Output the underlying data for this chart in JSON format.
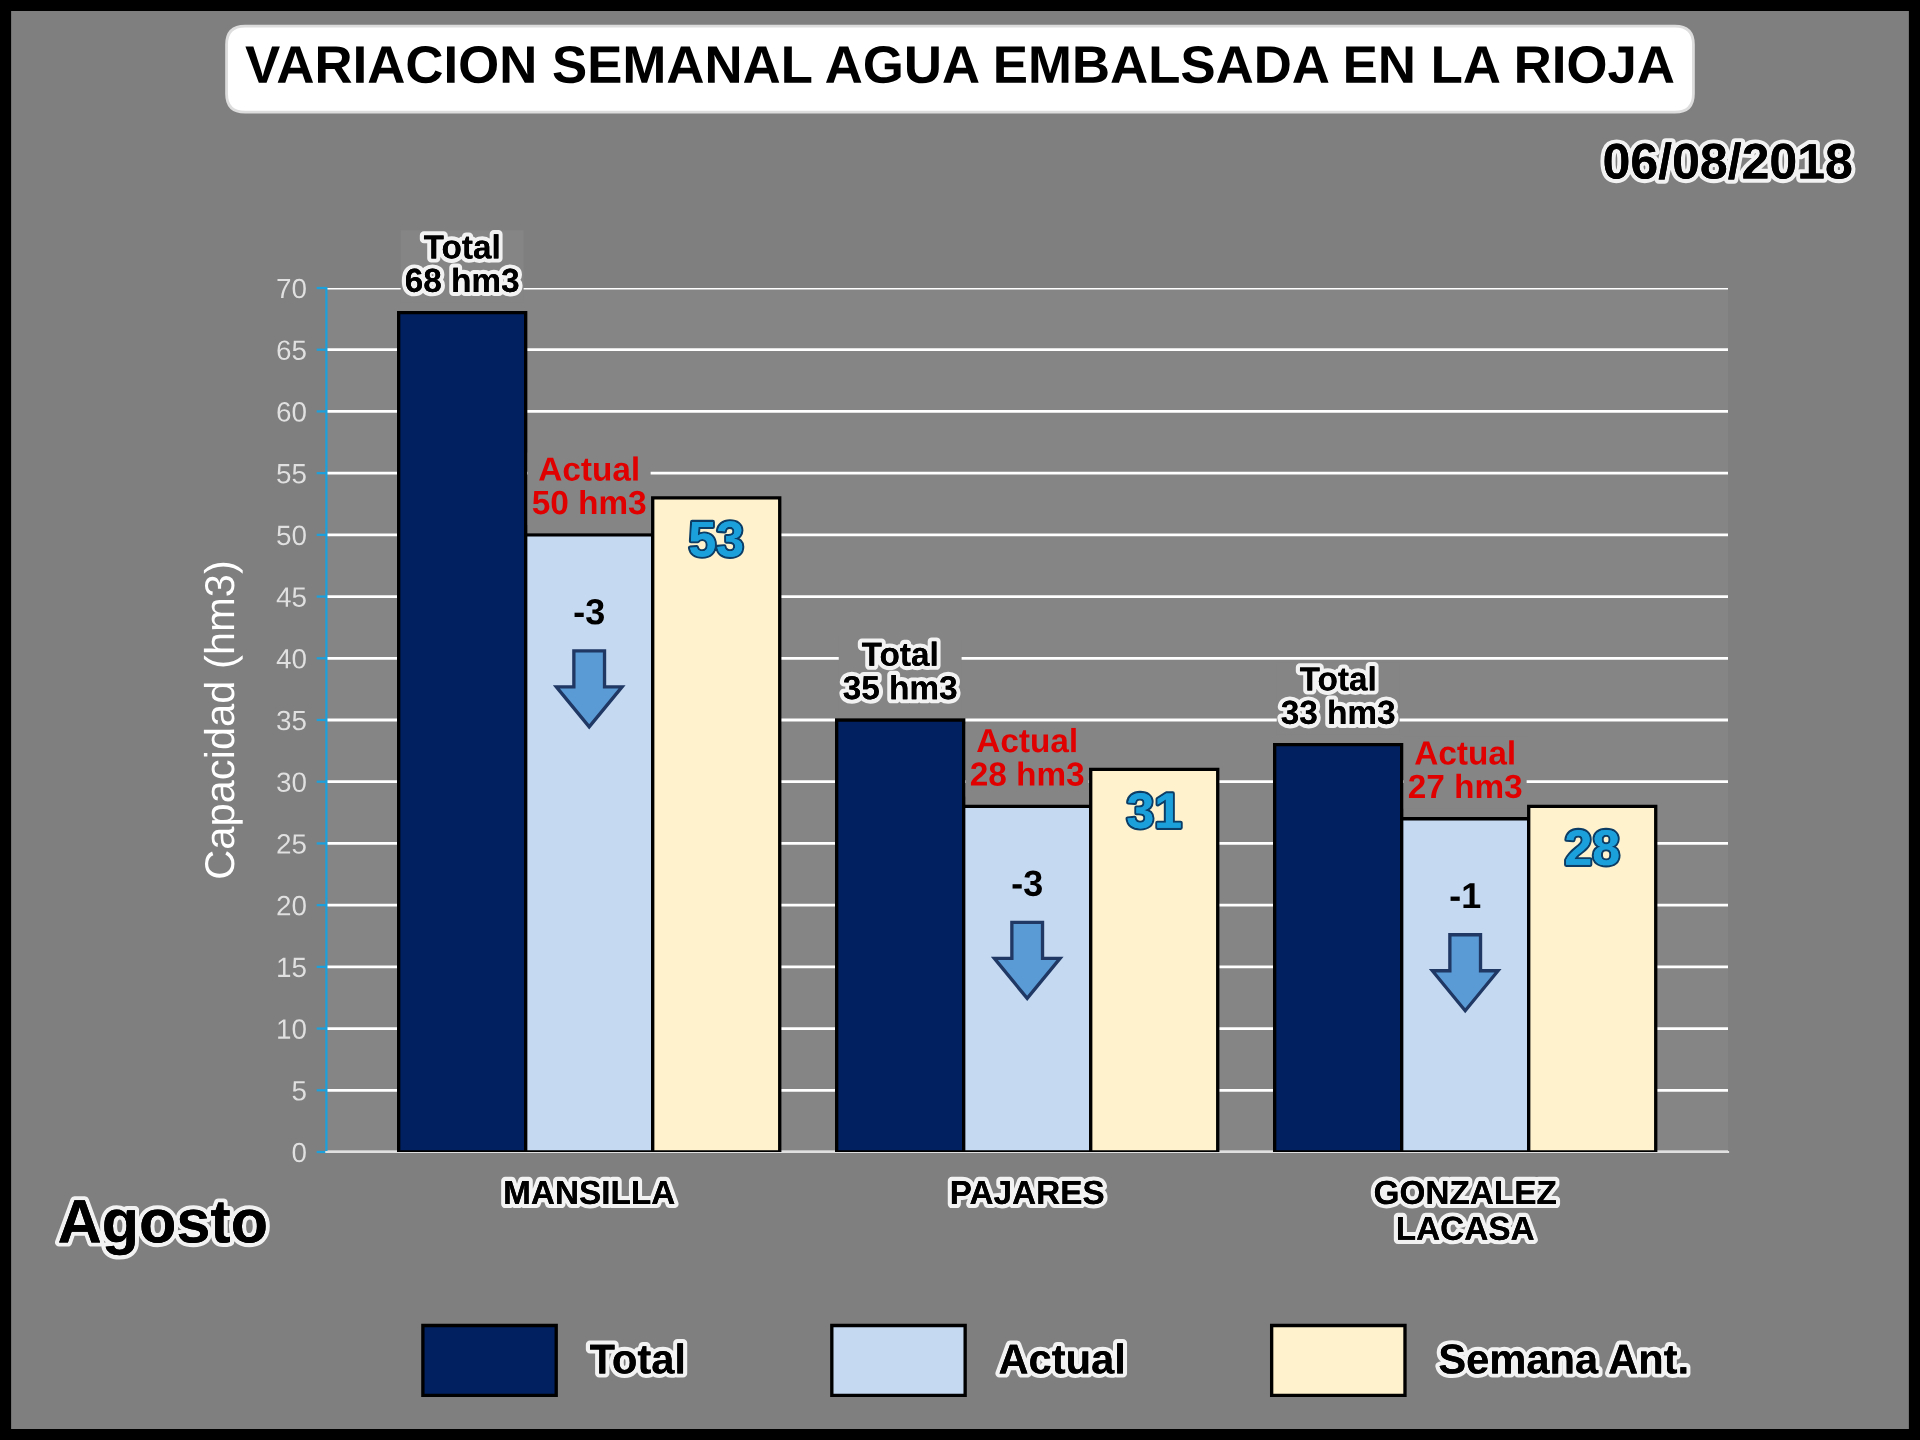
{
  "chart_data": {
    "type": "bar",
    "title": "VARIACION SEMANAL AGUA EMBALSADA EN LA RIOJA",
    "ylabel": "Capacidad (hm3)",
    "categories": [
      "MANSILLA",
      "PAJARES",
      "GONZALEZ\nLACASA"
    ],
    "series": [
      {
        "name": "Total",
        "color": "#002060",
        "values": [
          68,
          35,
          33
        ],
        "value_labels": [
          "Total\n68 hm3",
          "Total\n35 hm3",
          "Total\n33 hm3"
        ]
      },
      {
        "name": "Actual",
        "color": "#c5d9f1",
        "values": [
          50,
          28,
          27
        ],
        "value_labels": [
          "Actual\n50 hm3",
          "Actual\n28 hm3",
          "Actual\n27 hm3"
        ]
      },
      {
        "name": "Semana Ant.",
        "color": "#fff2cc",
        "values": [
          53,
          31,
          28
        ],
        "value_labels": [
          "53",
          "31",
          "28"
        ]
      }
    ],
    "ylim": [
      0,
      70
    ],
    "yticks": [
      0,
      5,
      10,
      15,
      20,
      25,
      30,
      35,
      40,
      45,
      50,
      55,
      60,
      65,
      70
    ],
    "grid": "y",
    "legend": "bottom",
    "annotations": [
      "06/08/2018",
      "Agosto",
      "-3",
      "-3",
      "-1"
    ]
  }
}
